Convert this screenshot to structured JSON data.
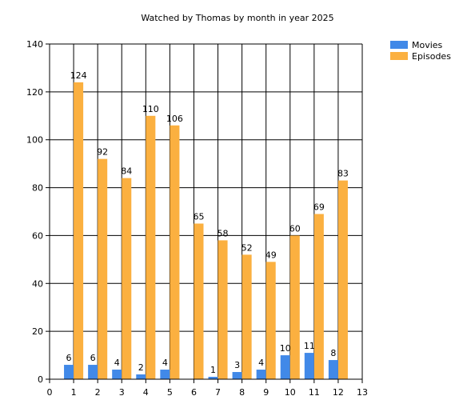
{
  "chart_data": {
    "type": "bar",
    "title": "Watched by Thomas by month in year 2025",
    "xlabel": "",
    "ylabel": "",
    "x": [
      1,
      2,
      3,
      4,
      5,
      6,
      7,
      8,
      9,
      10,
      11,
      12
    ],
    "xlim": [
      0,
      13
    ],
    "ylim": [
      0,
      140
    ],
    "x_ticks": [
      0,
      1,
      2,
      3,
      4,
      5,
      6,
      7,
      8,
      9,
      10,
      11,
      12,
      13
    ],
    "y_ticks": [
      0,
      20,
      40,
      60,
      80,
      100,
      120,
      140
    ],
    "grid": true,
    "legend_position": "top-right",
    "series": [
      {
        "name": "Movies",
        "color": "#4189E8",
        "values": [
          6,
          6,
          4,
          2,
          4,
          0,
          1,
          3,
          4,
          10,
          11,
          8
        ],
        "labels": [
          "6",
          "6",
          "4",
          "2",
          "4",
          "",
          "1",
          "3",
          "4",
          "10",
          "11",
          "8"
        ]
      },
      {
        "name": "Episodes",
        "color": "#FBB040",
        "values": [
          124,
          92,
          84,
          110,
          106,
          65,
          58,
          52,
          49,
          60,
          69,
          83
        ],
        "labels": [
          "124",
          "92",
          "84",
          "110",
          "106",
          "65",
          "58",
          "52",
          "49",
          "60",
          "69",
          "83"
        ]
      }
    ]
  }
}
